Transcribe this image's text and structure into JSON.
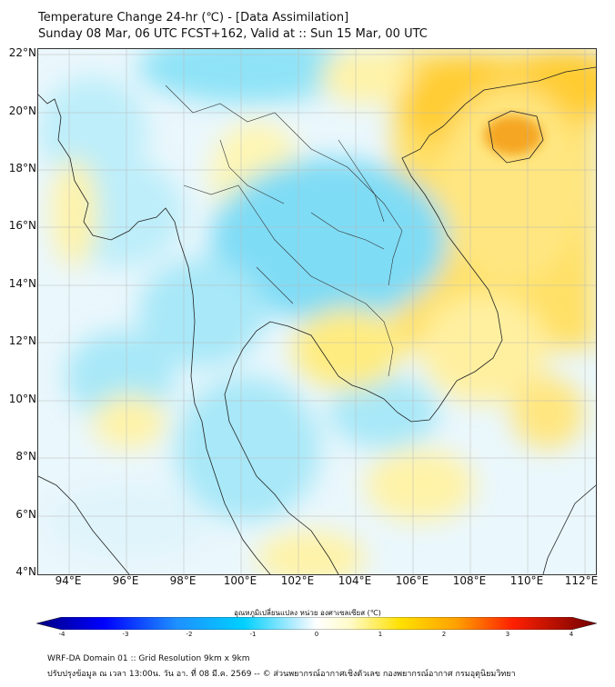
{
  "header": {
    "title_line1": "Temperature Change 24-hr (℃) - [Data Assimilation]",
    "title_line2": "Sunday 08 Mar, 06 UTC FCST+162, Valid at :: Sun 15 Mar, 00 UTC"
  },
  "map": {
    "lat_labels": [
      "22°N",
      "20°N",
      "18°N",
      "16°N",
      "14°N",
      "12°N",
      "10°N",
      "8°N",
      "6°N",
      "4°N"
    ],
    "lon_labels": [
      "94°E",
      "96°E",
      "98°E",
      "100°E",
      "102°E",
      "104°E",
      "106°E",
      "108°E",
      "110°E",
      "112°E"
    ],
    "lat_range": [
      4,
      22.2
    ],
    "lon_range": [
      93,
      112.4
    ]
  },
  "colorbar": {
    "title": "อุณหภูมิเปลี่ยนแปลง หน่วย องศาเซลเซียส (℃)",
    "ticks": [
      "-4",
      "-3",
      "-2",
      "-1",
      "0",
      "1",
      "2",
      "3",
      "4"
    ],
    "range": [
      -4,
      4
    ],
    "colors": [
      "#000080",
      "#0000ff",
      "#1e90ff",
      "#00bfff",
      "#7fe0ff",
      "#ffffff",
      "#fff8a0",
      "#ffd700",
      "#ffa500",
      "#ff4500",
      "#c00000",
      "#800000"
    ]
  },
  "footer": {
    "line1": "WRF-DA Domain 01 :: Grid Resolution 9km x 9km",
    "line2": "ปรับปรุงข้อมูล ณ เวลา 13:00น. วัน อา. ที่ 08 มี.ค. 2569 -- © ส่วนพยากรณ์อากาศเชิงตัวเลข กองพยากรณ์อากาศ กรมอุตุนิยมวิทยา"
  }
}
